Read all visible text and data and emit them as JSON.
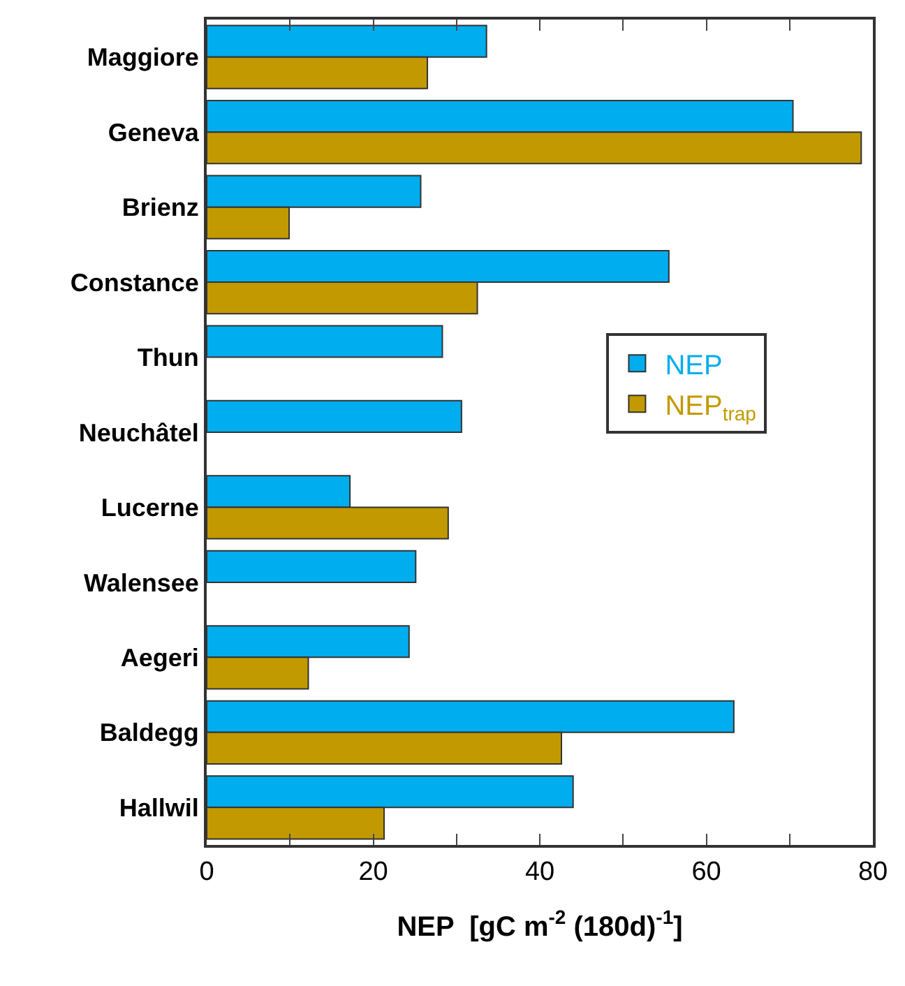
{
  "chart_data": {
    "type": "bar",
    "orientation": "horizontal",
    "categories": [
      "Maggiore",
      "Geneva",
      "Brienz",
      "Constance",
      "Thun",
      "Neuchâtel",
      "Lucerne",
      "Walensee",
      "Aegeri",
      "Baldegg",
      "Hallwil"
    ],
    "series": [
      {
        "name": "NEP",
        "color": "#00adee",
        "values": [
          33.6,
          70.4,
          25.7,
          55.5,
          28.3,
          30.6,
          17.2,
          25.1,
          24.3,
          63.3,
          44.0
        ]
      },
      {
        "name": "NEP$_{trap}$",
        "color": "#c29a00",
        "values": [
          26.5,
          78.6,
          9.9,
          32.5,
          null,
          null,
          29.0,
          null,
          12.2,
          42.6,
          21.3
        ]
      }
    ],
    "xlabel": "NEP  [gC m$^{-2}$ (180d)$^{-1}$]",
    "xlim": [
      0,
      80
    ],
    "xticks": [
      0,
      {
        "value": 10,
        "label": null
      },
      20,
      {
        "value": 30,
        "label": null
      },
      40,
      {
        "value": 50,
        "label": null
      },
      60,
      {
        "value": 70,
        "label": null
      },
      80
    ],
    "legend": "right"
  }
}
